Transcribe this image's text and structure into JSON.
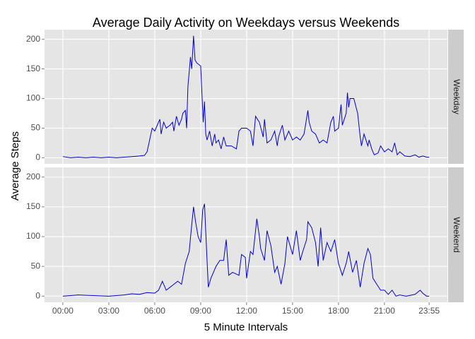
{
  "chart_data": {
    "type": "line",
    "title": "Average Daily Activity on Weekdays versus Weekends",
    "x_label": "5 Minute Intervals",
    "y_label": "Average Steps",
    "color": "#0000cc",
    "grid": true,
    "xlim": [
      -71.75,
      1506.75
    ],
    "ylim": [
      -10.3,
      216.3
    ],
    "xticks": [
      {
        "value": 0,
        "label": "00:00"
      },
      {
        "value": 180,
        "label": "03:00"
      },
      {
        "value": 360,
        "label": "06:00"
      },
      {
        "value": 540,
        "label": "09:00"
      },
      {
        "value": 720,
        "label": "12:00"
      },
      {
        "value": 900,
        "label": "15:00"
      },
      {
        "value": 1080,
        "label": "18:00"
      },
      {
        "value": 1260,
        "label": "21:00"
      },
      {
        "value": 1435,
        "label": "23:55"
      }
    ],
    "yticks": [
      0,
      50,
      100,
      150,
      200
    ],
    "facets": [
      {
        "name": "Weekday",
        "x": [
          0,
          30,
          60,
          90,
          120,
          150,
          180,
          210,
          240,
          270,
          300,
          320,
          330,
          340,
          350,
          360,
          370,
          380,
          385,
          395,
          405,
          420,
          430,
          435,
          445,
          455,
          465,
          470,
          480,
          485,
          490,
          500,
          505,
          512,
          518,
          525,
          540,
          550,
          555,
          560,
          565,
          575,
          585,
          595,
          600,
          610,
          620,
          630,
          640,
          660,
          680,
          690,
          700,
          720,
          735,
          745,
          755,
          770,
          785,
          790,
          800,
          815,
          830,
          840,
          845,
          860,
          870,
          885,
          900,
          915,
          930,
          945,
          960,
          965,
          975,
          990,
          1005,
          1020,
          1035,
          1050,
          1060,
          1065,
          1080,
          1090,
          1095,
          1110,
          1115,
          1120,
          1125,
          1140,
          1155,
          1165,
          1170,
          1180,
          1195,
          1200,
          1210,
          1220,
          1235,
          1245,
          1260,
          1275,
          1290,
          1300,
          1310,
          1320,
          1340,
          1360,
          1380,
          1395,
          1410,
          1425,
          1435
        ],
        "values": [
          2,
          0,
          1,
          0,
          1,
          0,
          1,
          0,
          1,
          2,
          3,
          4,
          10,
          30,
          50,
          45,
          55,
          65,
          40,
          60,
          50,
          55,
          60,
          45,
          70,
          55,
          65,
          75,
          80,
          50,
          120,
          170,
          150,
          206,
          165,
          160,
          155,
          60,
          95,
          40,
          30,
          45,
          20,
          40,
          25,
          30,
          15,
          35,
          20,
          20,
          15,
          45,
          50,
          50,
          45,
          20,
          70,
          60,
          35,
          65,
          25,
          30,
          45,
          20,
          35,
          55,
          30,
          45,
          30,
          35,
          30,
          40,
          80,
          60,
          45,
          40,
          25,
          30,
          25,
          60,
          70,
          45,
          50,
          90,
          55,
          75,
          110,
          85,
          100,
          100,
          75,
          35,
          20,
          40,
          20,
          30,
          15,
          5,
          8,
          20,
          10,
          15,
          10,
          25,
          5,
          10,
          3,
          2,
          5,
          1,
          3,
          1,
          1
        ]
      },
      {
        "name": "Weekend",
        "x": [
          0,
          60,
          120,
          180,
          240,
          270,
          300,
          330,
          360,
          375,
          390,
          405,
          420,
          435,
          450,
          465,
          480,
          495,
          505,
          512,
          520,
          530,
          540,
          548,
          555,
          565,
          570,
          580,
          600,
          615,
          630,
          640,
          650,
          665,
          690,
          700,
          715,
          720,
          735,
          745,
          760,
          770,
          775,
          790,
          800,
          815,
          830,
          840,
          855,
          870,
          880,
          900,
          915,
          930,
          940,
          955,
          960,
          975,
          990,
          1000,
          1010,
          1020,
          1035,
          1050,
          1065,
          1080,
          1095,
          1110,
          1120,
          1135,
          1150,
          1165,
          1180,
          1195,
          1205,
          1215,
          1230,
          1245,
          1260,
          1275,
          1290,
          1305,
          1320,
          1345,
          1380,
          1400,
          1410,
          1425,
          1435
        ],
        "values": [
          0,
          2,
          1,
          0,
          2,
          4,
          3,
          6,
          5,
          10,
          25,
          10,
          15,
          20,
          25,
          20,
          55,
          75,
          120,
          150,
          125,
          100,
          90,
          145,
          155,
          60,
          15,
          30,
          50,
          60,
          60,
          95,
          35,
          40,
          35,
          70,
          65,
          30,
          75,
          70,
          130,
          100,
          80,
          60,
          110,
          85,
          40,
          50,
          20,
          55,
          100,
          70,
          110,
          60,
          75,
          95,
          125,
          115,
          90,
          50,
          115,
          60,
          90,
          75,
          95,
          55,
          35,
          55,
          75,
          40,
          60,
          15,
          55,
          80,
          70,
          30,
          20,
          10,
          10,
          3,
          10,
          0,
          2,
          0,
          3,
          10,
          5,
          0,
          0
        ]
      }
    ]
  }
}
